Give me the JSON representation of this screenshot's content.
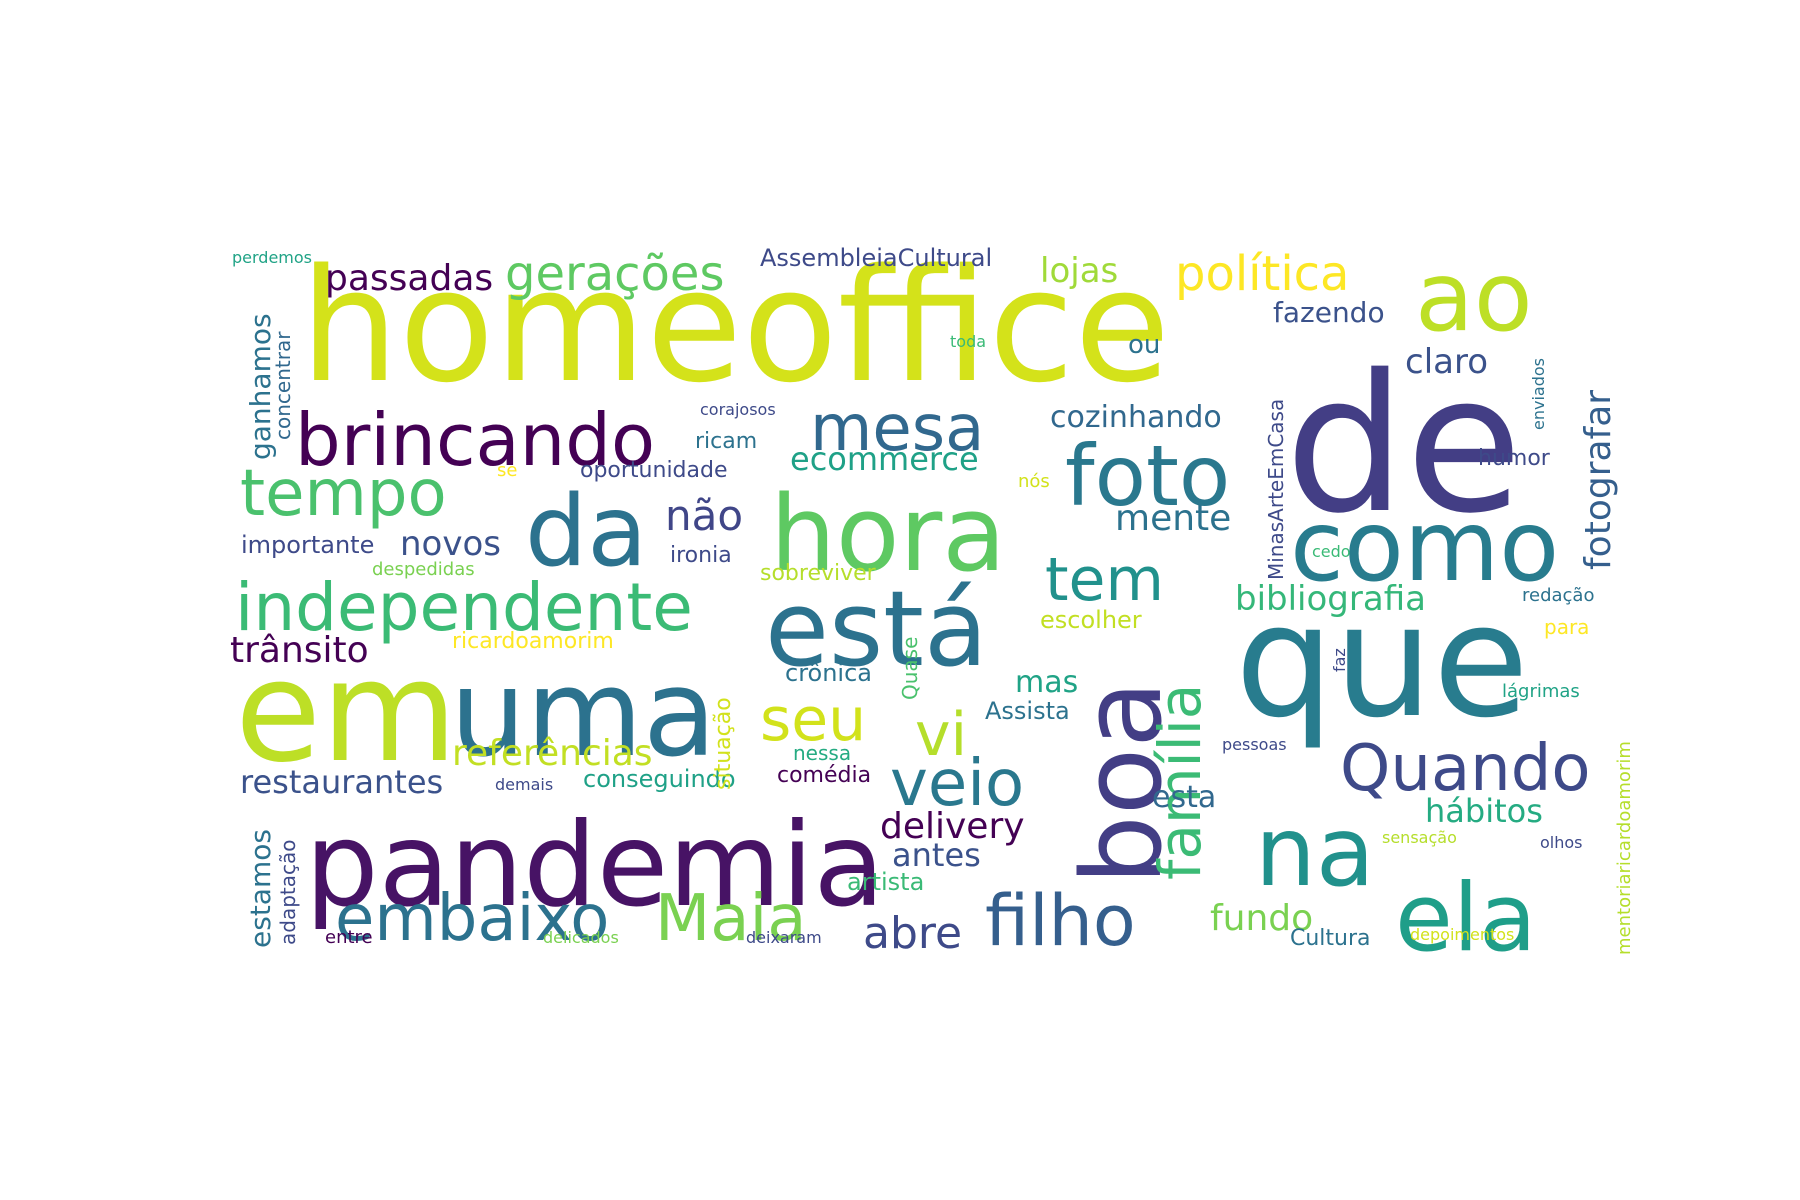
{
  "words": [
    {
      "text": "homeoffice",
      "color": "#d4e21a",
      "rotated": false
    },
    {
      "text": "de",
      "color": "#433e85",
      "rotated": false
    },
    {
      "text": "que",
      "color": "#287c8e",
      "rotated": false
    },
    {
      "text": "em",
      "color": "#bddf26",
      "rotated": false
    },
    {
      "text": "uma",
      "color": "#2c728e",
      "rotated": false
    },
    {
      "text": "pandemia",
      "color": "#471365",
      "rotated": false
    },
    {
      "text": "boa",
      "color": "#433e85",
      "rotated": true
    },
    {
      "text": "está",
      "color": "#2c728e",
      "rotated": false
    },
    {
      "text": "hora",
      "color": "#5ec962",
      "rotated": false
    },
    {
      "text": "como",
      "color": "#287c8e",
      "rotated": false
    },
    {
      "text": "da",
      "color": "#2c728e",
      "rotated": false
    },
    {
      "text": "ao",
      "color": "#bddf26",
      "rotated": false
    },
    {
      "text": "na",
      "color": "#21918c",
      "rotated": false
    },
    {
      "text": "ela",
      "color": "#1f9e89",
      "rotated": false
    },
    {
      "text": "foto",
      "color": "#2a788e",
      "rotated": false
    },
    {
      "text": "brincando",
      "color": "#440154",
      "rotated": false
    },
    {
      "text": "independente",
      "color": "#3bbb75",
      "rotated": false
    },
    {
      "text": "filho",
      "color": "#355f8d",
      "rotated": false
    },
    {
      "text": "família",
      "color": "#3bbb75",
      "rotated": true
    },
    {
      "text": "Quando",
      "color": "#3e4a89",
      "rotated": false
    },
    {
      "text": "embaixo",
      "color": "#2c728e",
      "rotated": false
    },
    {
      "text": "Maia",
      "color": "#7ad151",
      "rotated": false
    },
    {
      "text": "veio",
      "color": "#2a788e",
      "rotated": false
    },
    {
      "text": "tempo",
      "color": "#4ac16d",
      "rotated": false
    },
    {
      "text": "mesa",
      "color": "#31688e",
      "rotated": false
    },
    {
      "text": "tem",
      "color": "#21918c",
      "rotated": false
    },
    {
      "text": "seu",
      "color": "#d2e21b",
      "rotated": false
    },
    {
      "text": "vi",
      "color": "#b5de2b",
      "rotated": false
    },
    {
      "text": "política",
      "color": "#fde725",
      "rotated": false
    },
    {
      "text": "gerações",
      "color": "#5ec962",
      "rotated": false
    },
    {
      "text": "fotografar",
      "color": "#355f8d",
      "rotated": true
    },
    {
      "text": "passadas",
      "color": "#440154",
      "rotated": false
    },
    {
      "text": "abre",
      "color": "#3e4a89",
      "rotated": false
    },
    {
      "text": "não",
      "color": "#404688",
      "rotated": false
    },
    {
      "text": "lojas",
      "color": "#a0da39",
      "rotated": false
    },
    {
      "text": "mente",
      "color": "#2c728e",
      "rotated": false
    },
    {
      "text": "bibliografia",
      "color": "#35b779",
      "rotated": false
    },
    {
      "text": "referências",
      "color": "#c2df23",
      "rotated": false
    },
    {
      "text": "claro",
      "color": "#3b528b",
      "rotated": false
    },
    {
      "text": "trânsito",
      "color": "#440154",
      "rotated": false
    },
    {
      "text": "novos",
      "color": "#3b528b",
      "rotated": false
    },
    {
      "text": "delivery",
      "color": "#440154",
      "rotated": false
    },
    {
      "text": "restaurantes",
      "color": "#3b528b",
      "rotated": false
    },
    {
      "text": "hábitos",
      "color": "#25ab82",
      "rotated": false
    },
    {
      "text": "fundo",
      "color": "#7ad151",
      "rotated": false
    },
    {
      "text": "cozinhando",
      "color": "#31688e",
      "rotated": false
    },
    {
      "text": "ecommerce",
      "color": "#1fa187",
      "rotated": false
    },
    {
      "text": "antes",
      "color": "#3b528b",
      "rotated": false
    },
    {
      "text": "mas",
      "color": "#20a386",
      "rotated": false
    },
    {
      "text": "ganhamos",
      "color": "#2c728e",
      "rotated": true
    },
    {
      "text": "fazendo",
      "color": "#3b528b",
      "rotated": false
    },
    {
      "text": "esta",
      "color": "#31688e",
      "rotated": false
    },
    {
      "text": "estamos",
      "color": "#2c728e",
      "rotated": true
    },
    {
      "text": "ou",
      "color": "#2c728e",
      "rotated": false
    },
    {
      "text": "AssembleiaCultural",
      "color": "#3e4a89",
      "rotated": false
    },
    {
      "text": "escolher",
      "color": "#c2df23",
      "rotated": false
    },
    {
      "text": "artista",
      "color": "#3aba76",
      "rotated": false
    },
    {
      "text": "MinasArteEmCasa",
      "color": "#3e4a89",
      "rotated": true
    },
    {
      "text": "oportunidade",
      "color": "#3e4a89",
      "rotated": false
    },
    {
      "text": "importante",
      "color": "#3e4a89",
      "rotated": false
    },
    {
      "text": "Assista",
      "color": "#2c728e",
      "rotated": false
    },
    {
      "text": "conseguindo",
      "color": "#1fa187",
      "rotated": false
    },
    {
      "text": "ricardoamorim",
      "color": "#fde725",
      "rotated": false
    },
    {
      "text": "crônica",
      "color": "#2c728e",
      "rotated": false
    },
    {
      "text": "humor",
      "color": "#3e4a89",
      "rotated": false
    },
    {
      "text": "sobreviver",
      "color": "#b5de2b",
      "rotated": false
    },
    {
      "text": "comédia",
      "color": "#440154",
      "rotated": false
    },
    {
      "text": "concentrar",
      "color": "#31688e",
      "rotated": true
    },
    {
      "text": "situação",
      "color": "#d2e21b",
      "rotated": true
    },
    {
      "text": "ironia",
      "color": "#3e4a89",
      "rotated": false
    },
    {
      "text": "adaptação",
      "color": "#3e4a89",
      "rotated": true
    },
    {
      "text": "Cultura",
      "color": "#2c728e",
      "rotated": false
    },
    {
      "text": "mentoriaricardoamorim",
      "color": "#b5de2b",
      "rotated": true
    },
    {
      "text": "nessa",
      "color": "#25ab82",
      "rotated": false
    },
    {
      "text": "ricam",
      "color": "#2c728e",
      "rotated": false
    },
    {
      "text": "Quase",
      "color": "#4ac16d",
      "rotated": true
    },
    {
      "text": "despedidas",
      "color": "#7ad151",
      "rotated": false
    },
    {
      "text": "lágrimas",
      "color": "#20a386",
      "rotated": false
    },
    {
      "text": "para",
      "color": "#fde725",
      "rotated": false
    },
    {
      "text": "redação",
      "color": "#2c728e",
      "rotated": false
    },
    {
      "text": "perdemos",
      "color": "#20a386",
      "rotated": false
    },
    {
      "text": "corajosos",
      "color": "#3e4a89",
      "rotated": false
    },
    {
      "text": "se",
      "color": "#fde725",
      "rotated": false
    },
    {
      "text": "nós",
      "color": "#d2e21b",
      "rotated": false
    },
    {
      "text": "toda",
      "color": "#3aba76",
      "rotated": false
    },
    {
      "text": "cedo",
      "color": "#3aba76",
      "rotated": false
    },
    {
      "text": "enviados",
      "color": "#2c728e",
      "rotated": true
    },
    {
      "text": "faz",
      "color": "#3e4a89",
      "rotated": true
    },
    {
      "text": "pessoas",
      "color": "#3e4a89",
      "rotated": false
    },
    {
      "text": "demais",
      "color": "#3e4a89",
      "rotated": false
    },
    {
      "text": "sensação",
      "color": "#b5de2b",
      "rotated": false
    },
    {
      "text": "olhos",
      "color": "#3e4a89",
      "rotated": false
    },
    {
      "text": "entre",
      "color": "#440154",
      "rotated": false
    },
    {
      "text": "delicados",
      "color": "#7ad151",
      "rotated": false
    },
    {
      "text": "deixaram",
      "color": "#3e4a89",
      "rotated": false
    },
    {
      "text": "depoimentos",
      "color": "#d2e21b",
      "rotated": false
    }
  ]
}
